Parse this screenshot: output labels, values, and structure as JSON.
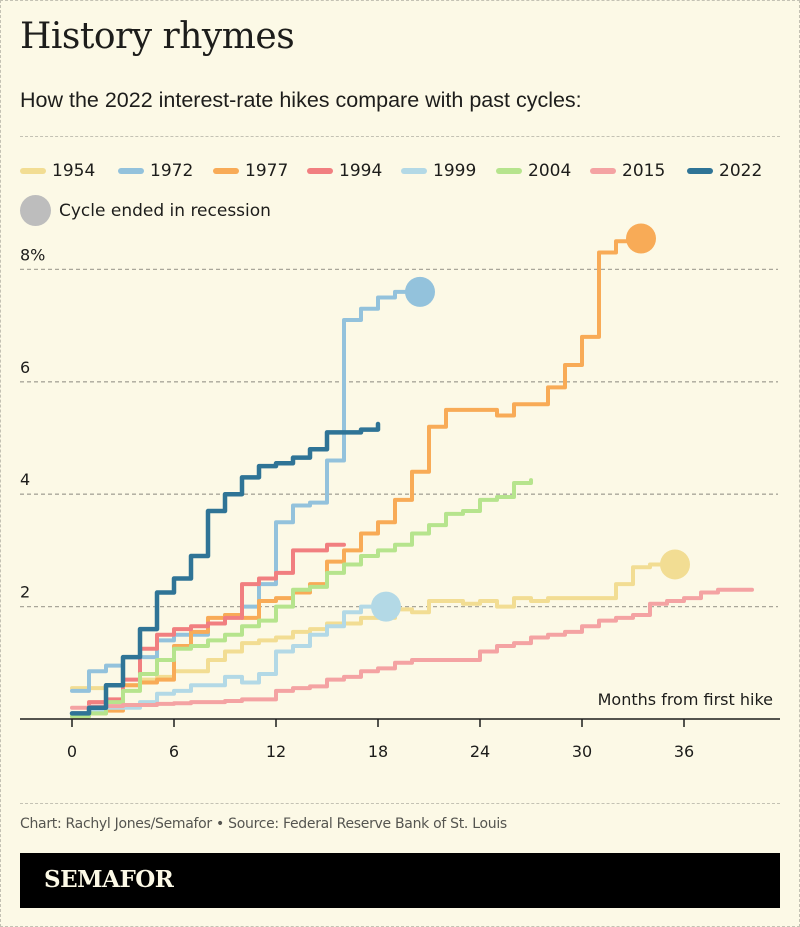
{
  "header": {
    "title": "History rhymes",
    "subtitle": "How the 2022 interest-rate hikes compare with past cycles:"
  },
  "legend": {
    "items": [
      {
        "label": "1954",
        "color": "#f2dd93"
      },
      {
        "label": "1972",
        "color": "#93c2dc"
      },
      {
        "label": "1977",
        "color": "#f8ab57"
      },
      {
        "label": "1994",
        "color": "#f17f80"
      },
      {
        "label": "1999",
        "color": "#b3d9e6"
      },
      {
        "label": "2004",
        "color": "#b6e48d"
      },
      {
        "label": "2015",
        "color": "#f4a3a3"
      },
      {
        "label": "2022",
        "color": "#2f7496"
      }
    ],
    "recession_label": "Cycle ended in recession",
    "recession_color": "#bdbdbd"
  },
  "footer": {
    "credit": "Chart: Rachyl Jones/Semafor • Source: Federal Reserve Bank of St. Louis",
    "brand": "SEMAFOR"
  },
  "chart_data": {
    "type": "line",
    "step": true,
    "title": "History rhymes",
    "subtitle": "How the 2022 interest-rate hikes compare with past cycles:",
    "xlabel": "Months from first hike",
    "ylabel": "",
    "xlim": [
      -3,
      41
    ],
    "ylim": [
      0,
      8.5
    ],
    "xticks": [
      0,
      6,
      12,
      18,
      24,
      30,
      36
    ],
    "xtick_labels": [
      "0",
      "6",
      "12",
      "18",
      "24",
      "30",
      "36"
    ],
    "yticks": [
      2,
      4,
      6,
      8
    ],
    "ytick_labels": [
      "2",
      "4",
      "6",
      "8%"
    ],
    "grid": "horizontal dashed",
    "legend_position": "top",
    "series": [
      {
        "name": "1954",
        "color": "#f2dd93",
        "recession": true,
        "x": [
          0,
          1,
          2,
          3,
          4,
          5,
          6,
          7,
          8,
          9,
          10,
          11,
          12,
          13,
          14,
          15,
          16,
          17,
          18,
          19,
          20,
          21,
          22,
          23,
          24,
          25,
          26,
          27,
          28,
          29,
          30,
          31,
          32,
          33,
          34,
          35
        ],
        "y": [
          0.55,
          0.55,
          0.6,
          0.6,
          0.7,
          0.75,
          0.85,
          0.85,
          1.05,
          1.2,
          1.35,
          1.4,
          1.45,
          1.55,
          1.6,
          1.7,
          1.7,
          1.8,
          1.8,
          1.95,
          1.9,
          2.1,
          2.1,
          2.05,
          2.1,
          2.0,
          2.15,
          2.1,
          2.15,
          2.15,
          2.15,
          2.15,
          2.4,
          2.7,
          2.75,
          2.75
        ]
      },
      {
        "name": "1972",
        "color": "#93c2dc",
        "recession": true,
        "x": [
          0,
          1,
          2,
          3,
          4,
          5,
          6,
          7,
          8,
          9,
          10,
          11,
          12,
          13,
          14,
          15,
          16,
          17,
          18,
          19,
          20
        ],
        "y": [
          0.5,
          0.85,
          0.95,
          1.1,
          1.1,
          1.4,
          1.5,
          1.5,
          1.7,
          1.85,
          2.0,
          2.4,
          3.5,
          3.8,
          3.85,
          4.6,
          7.1,
          7.3,
          7.5,
          7.6,
          7.6
        ]
      },
      {
        "name": "1977",
        "color": "#f8ab57",
        "recession": true,
        "x": [
          0,
          1,
          2,
          3,
          4,
          5,
          6,
          7,
          8,
          9,
          10,
          11,
          12,
          13,
          14,
          15,
          16,
          17,
          18,
          19,
          20,
          21,
          22,
          23,
          24,
          25,
          26,
          27,
          28,
          29,
          30,
          31,
          32,
          33
        ],
        "y": [
          0.05,
          0.1,
          0.15,
          0.6,
          0.65,
          0.7,
          1.3,
          1.55,
          1.8,
          1.85,
          1.8,
          2.1,
          2.15,
          2.25,
          2.4,
          2.8,
          3.0,
          3.3,
          3.5,
          3.9,
          4.4,
          5.2,
          5.5,
          5.5,
          5.5,
          5.4,
          5.6,
          5.6,
          5.9,
          6.3,
          6.8,
          8.3,
          8.5,
          8.55
        ]
      },
      {
        "name": "1994",
        "color": "#f17f80",
        "recession": false,
        "x": [
          0,
          1,
          2,
          3,
          4,
          5,
          6,
          7,
          8,
          9,
          10,
          11,
          12,
          13,
          14,
          15,
          16
        ],
        "y": [
          0.1,
          0.3,
          0.35,
          0.7,
          1.25,
          1.5,
          1.6,
          1.65,
          1.7,
          1.8,
          2.4,
          2.5,
          2.6,
          3.0,
          3.0,
          3.1,
          3.1
        ]
      },
      {
        "name": "1999",
        "color": "#b3d9e6",
        "recession": true,
        "x": [
          0,
          1,
          2,
          3,
          4,
          5,
          6,
          7,
          8,
          9,
          10,
          11,
          12,
          13,
          14,
          15,
          16,
          17,
          18
        ],
        "y": [
          0.1,
          0.15,
          0.2,
          0.2,
          0.3,
          0.45,
          0.5,
          0.6,
          0.6,
          0.75,
          0.65,
          0.8,
          1.2,
          1.3,
          1.5,
          1.65,
          1.9,
          2.0,
          2.0
        ]
      },
      {
        "name": "2004",
        "color": "#b6e48d",
        "recession": false,
        "x": [
          0,
          1,
          2,
          3,
          4,
          5,
          6,
          7,
          8,
          9,
          10,
          11,
          12,
          13,
          14,
          15,
          16,
          17,
          18,
          19,
          20,
          21,
          22,
          23,
          24,
          25,
          26,
          27
        ],
        "y": [
          0.05,
          0.1,
          0.3,
          0.5,
          0.8,
          1.05,
          1.25,
          1.3,
          1.4,
          1.5,
          1.65,
          1.75,
          2.0,
          2.3,
          2.35,
          2.6,
          2.75,
          2.9,
          3.0,
          3.1,
          3.3,
          3.45,
          3.65,
          3.7,
          3.9,
          3.95,
          4.2,
          4.25
        ]
      },
      {
        "name": "2015",
        "color": "#f4a3a3",
        "recession": false,
        "x": [
          0,
          1,
          2,
          3,
          4,
          5,
          6,
          7,
          8,
          9,
          10,
          11,
          12,
          13,
          14,
          15,
          16,
          17,
          18,
          19,
          20,
          21,
          22,
          23,
          24,
          25,
          26,
          27,
          28,
          29,
          30,
          31,
          32,
          33,
          34,
          35,
          36,
          37,
          38,
          39,
          40
        ],
        "y": [
          0.2,
          0.22,
          0.23,
          0.25,
          0.25,
          0.27,
          0.28,
          0.3,
          0.3,
          0.32,
          0.35,
          0.35,
          0.5,
          0.55,
          0.58,
          0.7,
          0.75,
          0.85,
          0.9,
          1.0,
          1.05,
          1.05,
          1.05,
          1.05,
          1.2,
          1.3,
          1.35,
          1.45,
          1.5,
          1.55,
          1.65,
          1.75,
          1.8,
          1.85,
          2.05,
          2.1,
          2.15,
          2.25,
          2.3,
          2.3,
          2.3
        ]
      },
      {
        "name": "2022",
        "color": "#2f7496",
        "recession": false,
        "x": [
          0,
          1,
          2,
          3,
          4,
          5,
          6,
          7,
          8,
          9,
          10,
          11,
          12,
          13,
          14,
          15,
          16,
          17,
          18
        ],
        "y": [
          0.1,
          0.2,
          0.6,
          1.1,
          1.6,
          2.25,
          2.5,
          2.9,
          3.7,
          4.0,
          4.3,
          4.5,
          4.55,
          4.65,
          4.8,
          5.1,
          5.1,
          5.15,
          5.25
        ]
      }
    ]
  }
}
